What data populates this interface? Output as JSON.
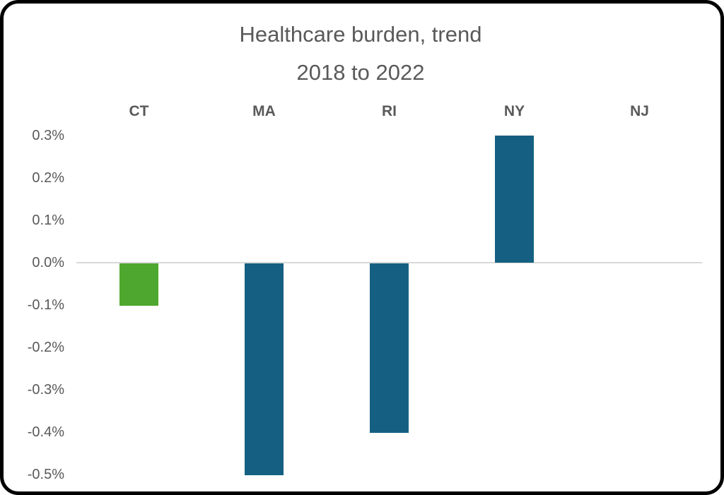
{
  "chart_data": {
    "type": "bar",
    "title": "Healthcare burden, trend",
    "subtitle": "2018 to 2022",
    "categories": [
      "CT",
      "MA",
      "RI",
      "NY",
      "NJ"
    ],
    "values": [
      -0.1,
      -0.5,
      -0.4,
      0.3,
      0.0
    ],
    "unit": "%",
    "series_name": "Healthcare burden trend 2018 to 2022",
    "bar_colors": [
      "#4EA72E",
      "#156082",
      "#156082",
      "#156082",
      "#156082"
    ],
    "default_bar_color": "#156082",
    "highlight_bar_color": "#4EA72E",
    "y_ticks": [
      "0.3%",
      "0.2%",
      "0.1%",
      "0.0%",
      "-0.1%",
      "-0.2%",
      "-0.3%",
      "-0.4%",
      "-0.5%"
    ],
    "y_tick_values": [
      0.3,
      0.2,
      0.1,
      0.0,
      -0.1,
      -0.2,
      -0.3,
      -0.4,
      -0.5
    ],
    "ylim": [
      -0.5,
      0.3
    ],
    "xlabel": "",
    "ylabel": "",
    "legend": "none",
    "grid": "zero-baseline-only",
    "category_labels_position": "top",
    "axis_line_color": "#D9D9D9",
    "text_color": "#595959",
    "background_color": "#FFFFFF",
    "frame_color": "#000000"
  }
}
